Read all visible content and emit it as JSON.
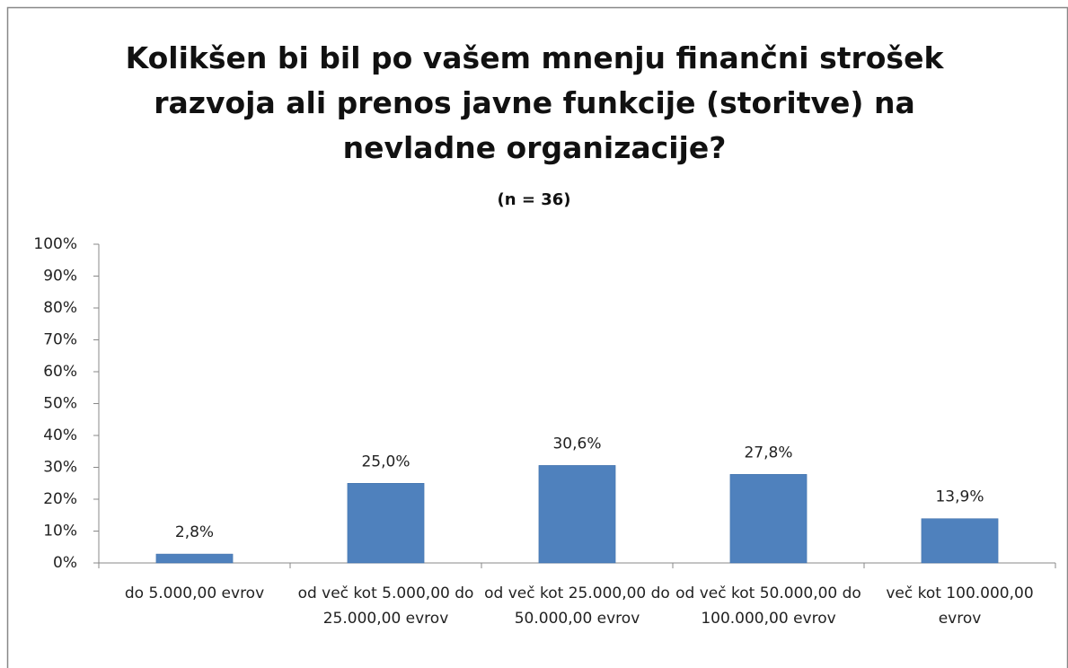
{
  "chart_data": {
    "type": "bar",
    "title": "Kolikšen bi bil po vašem mnenju finančni strošek razvoja ali prenos javne funkcije (storitve) na nevladne organizacije?",
    "subtitle": "(n = 36)",
    "categories": [
      "do 5.000,00 evrov",
      "od več kot 5.000,00 do 25.000,00 evrov",
      "od več kot 25.000,00 do 50.000,00 evrov",
      "od več kot 50.000,00 do 100.000,00 evrov",
      "več kot 100.000,00 evrov"
    ],
    "values": [
      2.8,
      25.0,
      30.6,
      27.8,
      13.9
    ],
    "value_labels": [
      "2,8%",
      "25,0%",
      "30,6%",
      "27,8%",
      "13,9%"
    ],
    "color": "#4f81bd",
    "ylim": [
      0,
      100
    ],
    "yticks": [
      {
        "value": 0,
        "label": "0%"
      },
      {
        "value": 10,
        "label": "10%"
      },
      {
        "value": 20,
        "label": "20%"
      },
      {
        "value": 30,
        "label": "30%"
      },
      {
        "value": 40,
        "label": "40%"
      },
      {
        "value": 50,
        "label": "50%"
      },
      {
        "value": 60,
        "label": "60%"
      },
      {
        "value": 70,
        "label": "70%"
      },
      {
        "value": 80,
        "label": "80%"
      },
      {
        "value": 90,
        "label": "90%"
      },
      {
        "value": 100,
        "label": "100%"
      }
    ],
    "grid": false
  }
}
